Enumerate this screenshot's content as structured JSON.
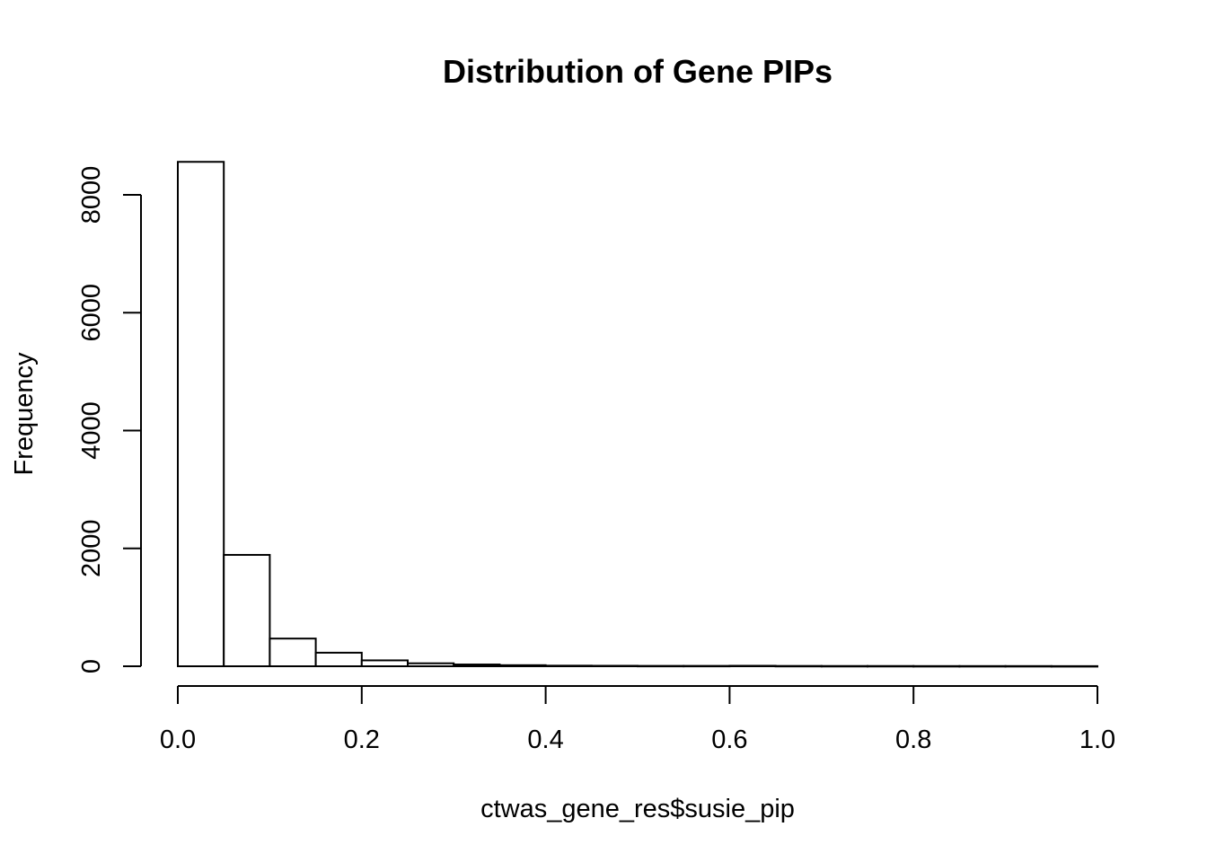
{
  "chart_data": {
    "type": "bar",
    "title": "Distribution of Gene PIPs",
    "xlabel": "ctwas_gene_res$susie_pip",
    "ylabel": "Frequency",
    "xlim": [
      0,
      1
    ],
    "ylim": [
      0,
      8000
    ],
    "grid": false,
    "bin_width": 0.05,
    "bin_edges": [
      0,
      0.05,
      0.1,
      0.15,
      0.2,
      0.25,
      0.3,
      0.35,
      0.4,
      0.45,
      0.5,
      0.55,
      0.6,
      0.65,
      0.7,
      0.75,
      0.8,
      0.85,
      0.9,
      0.95,
      1.0
    ],
    "values": [
      8560,
      1890,
      470,
      230,
      100,
      50,
      30,
      18,
      10,
      8,
      6,
      6,
      8,
      5,
      4,
      4,
      3,
      3,
      3,
      2
    ],
    "x_ticks": [
      "0.0",
      "0.2",
      "0.4",
      "0.6",
      "0.8",
      "1.0"
    ],
    "x_tick_values": [
      0,
      0.2,
      0.4,
      0.6,
      0.8,
      1.0
    ],
    "y_ticks": [
      "0",
      "2000",
      "4000",
      "6000",
      "8000"
    ],
    "y_tick_values": [
      0,
      2000,
      4000,
      6000,
      8000
    ]
  }
}
